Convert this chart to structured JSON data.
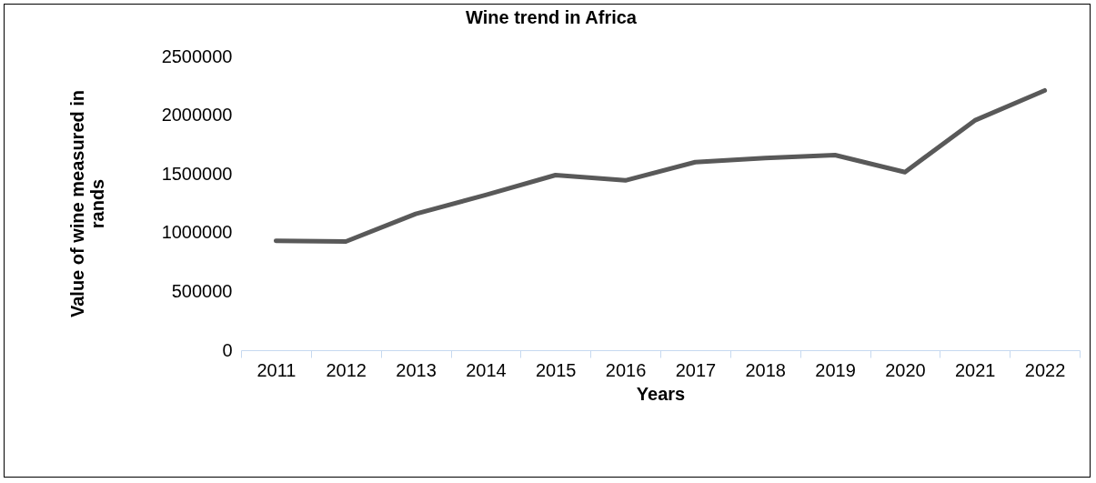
{
  "chart_data": {
    "type": "line",
    "title": "Wine trend in Africa",
    "xlabel": "Years",
    "ylabel": "Value of wine measured in rands",
    "categories": [
      "2011",
      "2012",
      "2013",
      "2014",
      "2015",
      "2016",
      "2017",
      "2018",
      "2019",
      "2020",
      "2021",
      "2022"
    ],
    "series": [
      {
        "color": "#595959",
        "values": [
          930000,
          925000,
          1160000,
          1320000,
          1490000,
          1445000,
          1600000,
          1635000,
          1660000,
          1515000,
          1955000,
          2210000
        ]
      }
    ],
    "ylim": [
      0,
      2500000
    ],
    "yticks": [
      0,
      500000,
      1000000,
      1500000,
      2000000,
      2500000
    ],
    "grid": false,
    "marker": "none",
    "line_style": "solid"
  }
}
